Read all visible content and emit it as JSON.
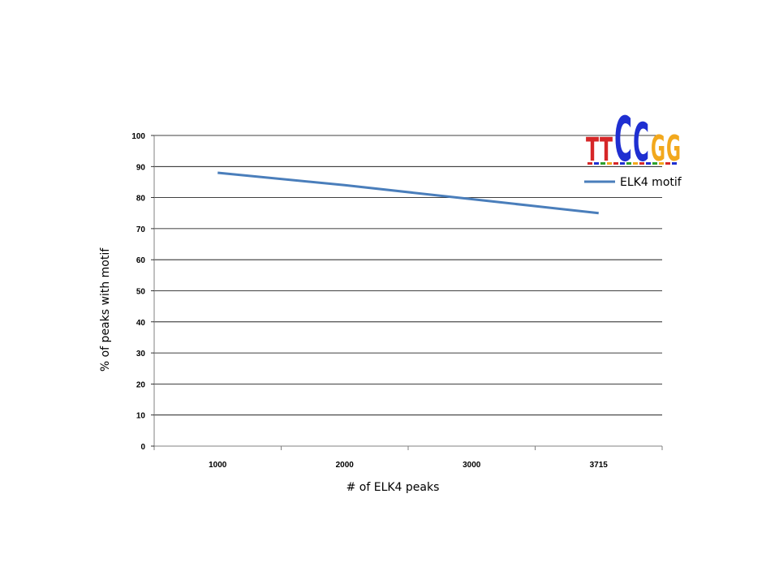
{
  "chart_data": {
    "type": "line",
    "title": "",
    "xlabel": "# of ELK4 peaks",
    "ylabel": "% of peaks with motif",
    "categories": [
      "1000",
      "2000",
      "3000",
      "3715"
    ],
    "series": [
      {
        "name": "ELK4 motif",
        "values": [
          88,
          84,
          79.5,
          75
        ],
        "color": "#4a7ebb"
      }
    ],
    "ylim": [
      0,
      100
    ],
    "yticks": [
      0,
      10,
      20,
      30,
      40,
      50,
      60,
      70,
      80,
      90,
      100
    ],
    "grid": "horizontal",
    "legend_position": "top-right",
    "legend_logo": {
      "icon": "sequence-logo-icon",
      "letters": [
        "T",
        "T",
        "C",
        "C",
        "G",
        "G"
      ],
      "letter_colors": [
        "#d62728",
        "#d62728",
        "#1f2fd1",
        "#1f2fd1",
        "#f2a81d",
        "#f2a81d"
      ]
    }
  }
}
